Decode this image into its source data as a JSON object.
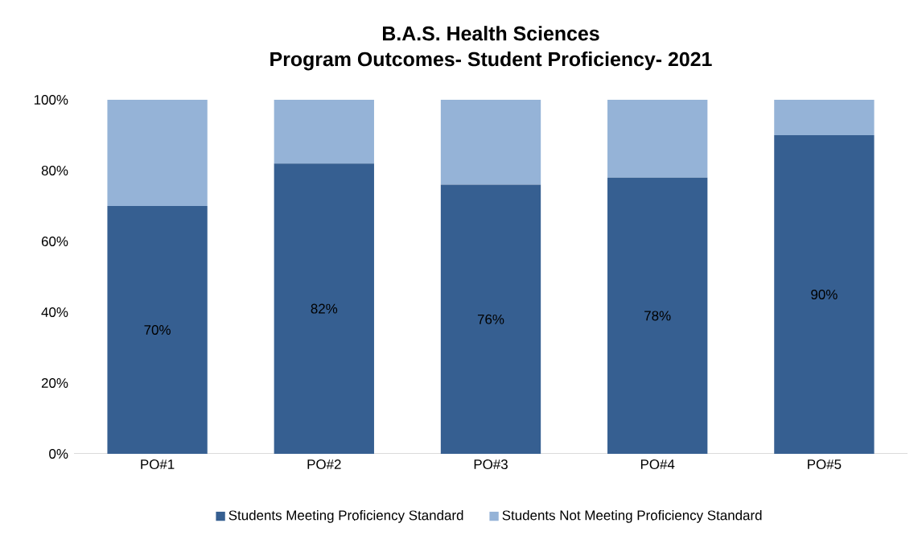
{
  "chart_data": {
    "type": "bar",
    "title": "B.A.S. Health Sciences",
    "subtitle": "Program Outcomes- Student Proficiency- 2021",
    "categories": [
      "PO#1",
      "PO#2",
      "PO#3",
      "PO#4",
      "PO#5"
    ],
    "stacked": true,
    "series": [
      {
        "name": "Students Meeting Proficiency Standard",
        "color": "#365f91",
        "values": [
          70,
          82,
          76,
          78,
          90
        ],
        "value_labels": [
          "70%",
          "82%",
          "76%",
          "78%",
          "90%"
        ]
      },
      {
        "name": "Students Not Meeting Proficiency Standard",
        "color": "#95b3d7",
        "values": [
          30,
          18,
          24,
          22,
          10
        ]
      }
    ],
    "ylim": [
      0,
      100
    ],
    "yticks": [
      {
        "value": 0,
        "label": "0%"
      },
      {
        "value": 20,
        "label": "20%"
      },
      {
        "value": 40,
        "label": "40%"
      },
      {
        "value": 60,
        "label": "60%"
      },
      {
        "value": 80,
        "label": "80%"
      },
      {
        "value": 100,
        "label": "100%"
      }
    ],
    "legend": "bottom"
  }
}
